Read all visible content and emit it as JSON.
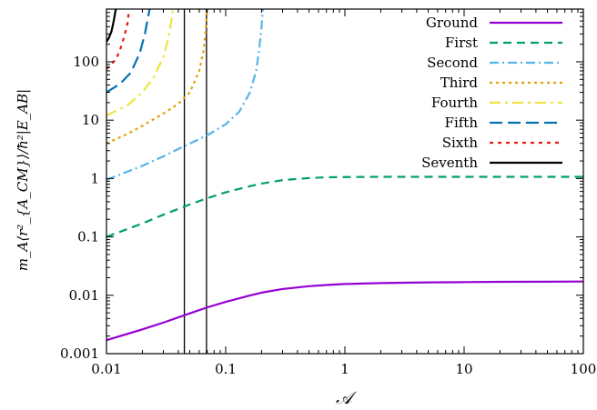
{
  "chart_data": {
    "type": "line",
    "title": "",
    "xlabel": "𝒜",
    "ylabel": "m_A⟨r²_{A_CM}⟩/ħ²|E_AB|",
    "xscale": "log",
    "yscale": "log",
    "xlim": [
      0.01,
      100
    ],
    "ylim": [
      0.001,
      800
    ],
    "x_ticks": [
      {
        "value": 0.01,
        "label": "0.01"
      },
      {
        "value": 0.1,
        "label": "0.1"
      },
      {
        "value": 1,
        "label": "1"
      },
      {
        "value": 10,
        "label": "10"
      },
      {
        "value": 100,
        "label": "100"
      }
    ],
    "y_ticks": [
      {
        "value": 0.001,
        "label": "0.001"
      },
      {
        "value": 0.01,
        "label": "0.01"
      },
      {
        "value": 0.1,
        "label": "0.1"
      },
      {
        "value": 1,
        "label": "1"
      },
      {
        "value": 10,
        "label": "10"
      },
      {
        "value": 100,
        "label": "100"
      }
    ],
    "legend_position": "top-right",
    "vertical_lines": [
      0.045,
      0.069
    ],
    "series": [
      {
        "name": "Ground",
        "color": "#9400d3",
        "dash": "solid",
        "x": [
          0.01,
          0.02,
          0.03,
          0.05,
          0.07,
          0.1,
          0.15,
          0.2,
          0.3,
          0.5,
          0.7,
          1,
          2,
          5,
          10,
          20,
          50,
          100
        ],
        "y": [
          0.0017,
          0.0026,
          0.0034,
          0.0049,
          0.0062,
          0.0077,
          0.0096,
          0.0111,
          0.0128,
          0.0143,
          0.015,
          0.0156,
          0.0162,
          0.0166,
          0.0168,
          0.017,
          0.0171,
          0.0172
        ]
      },
      {
        "name": "First",
        "color": "#009e73",
        "dash": "9,6",
        "x": [
          0.01,
          0.02,
          0.03,
          0.05,
          0.07,
          0.1,
          0.15,
          0.2,
          0.3,
          0.5,
          0.7,
          1,
          2,
          5,
          10,
          20,
          50,
          100
        ],
        "y": [
          0.1,
          0.17,
          0.24,
          0.36,
          0.46,
          0.58,
          0.72,
          0.82,
          0.94,
          1.02,
          1.05,
          1.06,
          1.07,
          1.07,
          1.07,
          1.07,
          1.07,
          1.07
        ]
      },
      {
        "name": "Second",
        "color": "#56b4e9",
        "dash": "10,4,2,4",
        "x": [
          0.01,
          0.02,
          0.03,
          0.045,
          0.07,
          0.1,
          0.13,
          0.16,
          0.18,
          0.19,
          0.2,
          0.205
        ],
        "y": [
          0.95,
          1.65,
          2.4,
          3.6,
          5.5,
          8.5,
          14,
          30,
          70,
          150,
          400,
          800
        ]
      },
      {
        "name": "Third",
        "color": "#e69f00",
        "dash": "3,4",
        "x": [
          0.01,
          0.015,
          0.02,
          0.03,
          0.04,
          0.05,
          0.06,
          0.065,
          0.068,
          0.07
        ],
        "y": [
          4.0,
          5.8,
          8.0,
          13,
          19,
          30,
          70,
          150,
          350,
          800
        ]
      },
      {
        "name": "Fourth",
        "color": "#f0e442",
        "dash": "12,5,3,5",
        "x": [
          0.01,
          0.015,
          0.02,
          0.025,
          0.03,
          0.033,
          0.035,
          0.036
        ],
        "y": [
          12,
          18,
          30,
          55,
          120,
          250,
          500,
          800
        ]
      },
      {
        "name": "Fifth",
        "color": "#0072b2",
        "dash": "14,6",
        "x": [
          0.01,
          0.013,
          0.016,
          0.019,
          0.021,
          0.022,
          0.023
        ],
        "y": [
          30,
          42,
          65,
          140,
          300,
          500,
          800
        ]
      },
      {
        "name": "Sixth",
        "color": "#e51e10",
        "dash": "4,5",
        "x": [
          0.01,
          0.012,
          0.013,
          0.014,
          0.015,
          0.0155
        ],
        "y": [
          75,
          110,
          160,
          260,
          450,
          800
        ]
      },
      {
        "name": "Seventh",
        "color": "#000000",
        "dash": "solid",
        "x": [
          0.01,
          0.0105,
          0.011,
          0.0113,
          0.0116,
          0.0118,
          0.012
        ],
        "y": [
          220,
          260,
          330,
          420,
          550,
          680,
          800
        ]
      }
    ]
  }
}
